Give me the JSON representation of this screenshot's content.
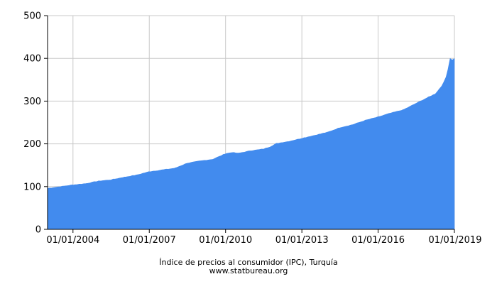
{
  "chart_data": {
    "type": "area",
    "title": "Índice de precios al consumidor (IPC), Turquía",
    "source": "www.statbureau.org",
    "xlabel": "",
    "ylabel": "",
    "x_range": [
      "2003-01-01",
      "2019-01-01"
    ],
    "ylim": [
      0,
      500
    ],
    "y_ticks": [
      0,
      100,
      200,
      300,
      400,
      500
    ],
    "x_ticks": [
      "01/01/2004",
      "01/01/2007",
      "01/01/2010",
      "01/01/2013",
      "01/01/2016",
      "01/01/2019"
    ],
    "grid": true,
    "legend": "none",
    "color": "#428BEE",
    "series": [
      {
        "x": [
          "2003-01-01",
          "2003-07-01",
          "2004-01-01",
          "2004-07-01",
          "2005-01-01",
          "2005-07-01",
          "2006-01-01",
          "2006-07-01",
          "2007-01-01",
          "2007-07-01",
          "2008-01-01",
          "2008-07-01",
          "2009-01-01",
          "2009-07-01",
          "2010-01-01",
          "2010-04-01",
          "2010-07-01",
          "2011-01-01",
          "2011-07-01",
          "2011-10-01",
          "2012-01-01",
          "2012-07-01",
          "2013-01-01",
          "2013-07-01",
          "2014-01-01",
          "2014-07-01",
          "2015-01-01",
          "2015-07-01",
          "2016-01-01",
          "2016-07-01",
          "2017-01-01",
          "2017-07-01",
          "2018-01-01",
          "2018-04-01",
          "2018-07-01",
          "2018-09-01",
          "2018-10-01",
          "2018-11-01",
          "2018-12-01",
          "2019-01-01"
        ],
        "values": [
          96,
          100,
          104,
          107,
          113,
          116,
          122,
          127,
          135,
          139,
          143,
          155,
          160,
          164,
          177,
          180,
          178,
          184,
          188,
          193,
          201,
          206,
          213,
          220,
          227,
          238,
          245,
          255,
          263,
          272,
          280,
          295,
          310,
          317,
          335,
          355,
          375,
          400,
          396,
          400
        ]
      }
    ]
  }
}
